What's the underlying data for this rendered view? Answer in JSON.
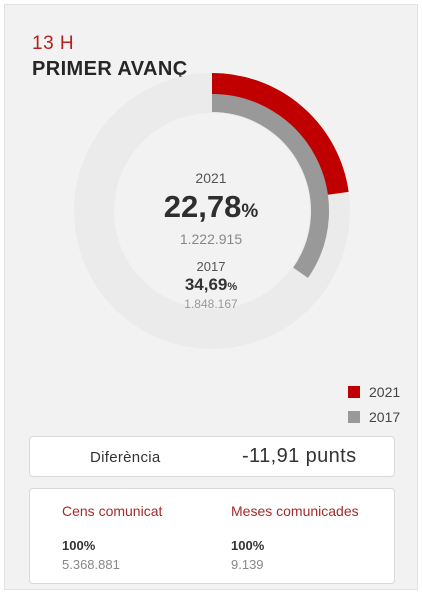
{
  "header": {
    "time": "13 H",
    "title": "PRIMER AVANÇ"
  },
  "center": {
    "year_current": "2021",
    "pct_current_value": "22,78",
    "pct_sign": "%",
    "votes_current": "1.222.915",
    "year_prev": "2017",
    "pct_prev_value": "34,69",
    "votes_prev": "1.848.167"
  },
  "chart_data": {
    "type": "pie",
    "series": [
      {
        "name": "2021",
        "values": [
          22.78
        ],
        "color": "#c00000"
      },
      {
        "name": "2017",
        "values": [
          34.69
        ],
        "color": "#999999"
      }
    ],
    "track_color": "#ebebeb",
    "start": "top, clockwise"
  },
  "legend": [
    {
      "label": "2021",
      "color": "#c00000"
    },
    {
      "label": "2017",
      "color": "#999999"
    }
  ],
  "difference": {
    "label": "Diferència",
    "value": "-11,91 punts"
  },
  "stats": [
    {
      "heading": "Cens comunicat",
      "pct": "100%",
      "value": "5.368.881"
    },
    {
      "heading": "Meses comunicades",
      "pct": "100%",
      "value": "9.139"
    }
  ]
}
